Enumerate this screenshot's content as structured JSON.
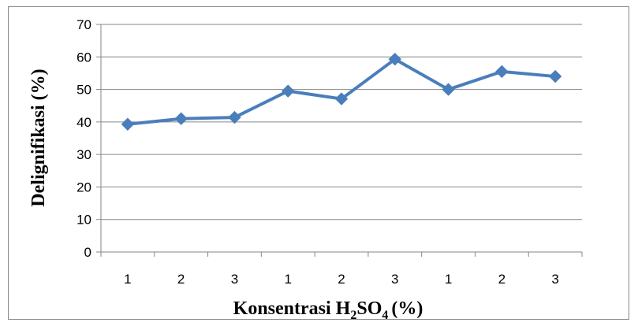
{
  "chart_data": {
    "type": "line",
    "categories": [
      "1",
      "2",
      "3",
      "1",
      "2",
      "3",
      "1",
      "2",
      "3"
    ],
    "series": [
      {
        "values": [
          39.3,
          41.0,
          41.4,
          49.5,
          47.1,
          59.3,
          50.0,
          55.5,
          54.0
        ]
      }
    ],
    "ylim": [
      0,
      70
    ],
    "yticks": [
      0,
      10,
      20,
      30,
      40,
      50,
      60,
      70
    ],
    "ylabel": "Delignifikasi (%)",
    "xlabel": {
      "prefix": "Konsentrasi H",
      "sub1": "2",
      "mid": "SO",
      "sub2": "4",
      "suffix": "(%)"
    },
    "grid": true,
    "legend": "none",
    "colors": {
      "line": "#4a7ebb",
      "marker": "#4a7ebb",
      "grid": "#868686",
      "axis": "#868686"
    },
    "marker": "diamond"
  }
}
